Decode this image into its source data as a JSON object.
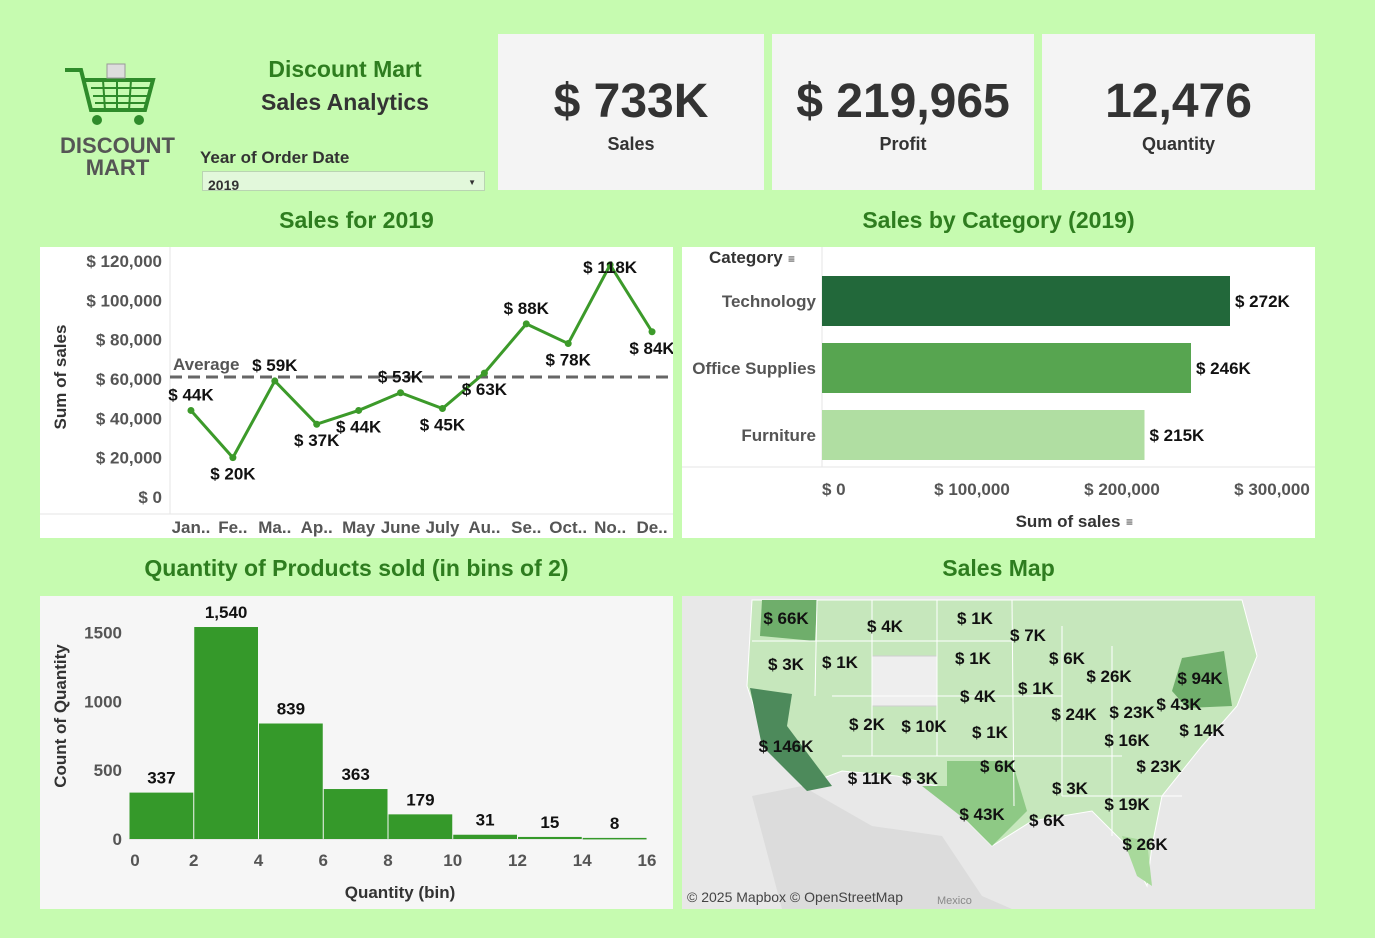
{
  "header": {
    "logo_line1": "DISCOUNT",
    "logo_line2": "MART",
    "title_line1": "Discount Mart",
    "title_line2": "Sales Analytics",
    "filter_label": "Year of Order Date",
    "filter_value": "2019"
  },
  "kpis": [
    {
      "value": "$ 733K",
      "label": "Sales"
    },
    {
      "value": "$ 219,965",
      "label": "Profit"
    },
    {
      "value": "12,476",
      "label": "Quantity"
    }
  ],
  "panels": {
    "sales_title": "Sales for 2019",
    "category_title": "Sales by Category (2019)",
    "quantity_title": "Quantity of Products sold (in bins of 2)",
    "map_title": "Sales Map"
  },
  "colors": {
    "background": "#c6fbb0",
    "title_green": "#2e7d1f",
    "line_green": "#3c9a2a",
    "tech": "#22683a",
    "office": "#57a550",
    "furniture": "#b0deA2",
    "hist": "#35992a"
  },
  "chart_data": [
    {
      "type": "line",
      "categories": [
        "Jan..",
        "Fe..",
        "Ma..",
        "Ap..",
        "May",
        "June",
        "July",
        "Au..",
        "Se..",
        "Oct..",
        "No..",
        "De.."
      ],
      "values": [
        44000,
        20000,
        59000,
        37000,
        44000,
        53000,
        45000,
        63000,
        88000,
        78000,
        118000,
        84000
      ],
      "data_labels": [
        "$ 44K",
        "$ 20K",
        "$ 59K",
        "$ 37K",
        "$ 44K",
        "$ 53K",
        "$ 45K",
        "$ 63K",
        "$ 88K",
        "$ 78K",
        "$ 118K",
        "$ 84K"
      ],
      "ylabel": "Sum of sales",
      "y_ticks": [
        0,
        20000,
        40000,
        60000,
        80000,
        100000,
        120000
      ],
      "y_tick_labels": [
        "$ 0",
        "$ 20,000",
        "$ 40,000",
        "$ 60,000",
        "$ 80,000",
        "$ 100,000",
        "$ 120,000"
      ],
      "ylim": [
        0,
        122000
      ],
      "reference_line": {
        "label": "Average",
        "value": 61000
      }
    },
    {
      "type": "bar",
      "orientation": "horizontal",
      "header": "Category",
      "categories": [
        "Technology",
        "Office Supplies",
        "Furniture"
      ],
      "values": [
        272000,
        246000,
        215000
      ],
      "data_labels": [
        "$ 272K",
        "$ 246K",
        "$ 215K"
      ],
      "xlabel": "Sum of sales",
      "x_ticks": [
        0,
        100000,
        200000,
        300000
      ],
      "x_tick_labels": [
        "$ 0",
        "$ 100,000",
        "$ 200,000",
        "$ 300,000"
      ],
      "xlim": [
        0,
        300000
      ]
    },
    {
      "type": "bar",
      "bin_edges": [
        0,
        2,
        4,
        6,
        8,
        10,
        12,
        14,
        16
      ],
      "values": [
        337,
        1540,
        839,
        363,
        179,
        31,
        15,
        8
      ],
      "data_labels": [
        "337",
        "1,540",
        "839",
        "363",
        "179",
        "31",
        "15",
        "8"
      ],
      "xlabel": "Quantity (bin)",
      "ylabel": "Count of Quantity",
      "y_ticks": [
        0,
        500,
        1000,
        1500
      ],
      "y_tick_labels": [
        "0",
        "500",
        "1000",
        "1500"
      ],
      "ylim": [
        0,
        1620
      ]
    }
  ],
  "map": {
    "labels": [
      "$ 66K",
      "$ 4K",
      "$ 1K",
      "$ 7K",
      "$ 3K",
      "$ 1K",
      "$ 1K",
      "$ 6K",
      "$ 26K",
      "$ 94K",
      "$ 4K",
      "$ 1K",
      "$ 2K",
      "$ 10K",
      "$ 24K",
      "$ 23K",
      "$ 43K",
      "$ 1K",
      "$ 146K",
      "$ 16K",
      "$ 14K",
      "$ 11K",
      "$ 3K",
      "$ 6K",
      "$ 23K",
      "$ 3K",
      "$ 19K",
      "$ 43K",
      "$ 6K",
      "$ 26K"
    ],
    "attribution": "© 2025 Mapbox © OpenStreetMap",
    "country_label": "Mexico"
  }
}
